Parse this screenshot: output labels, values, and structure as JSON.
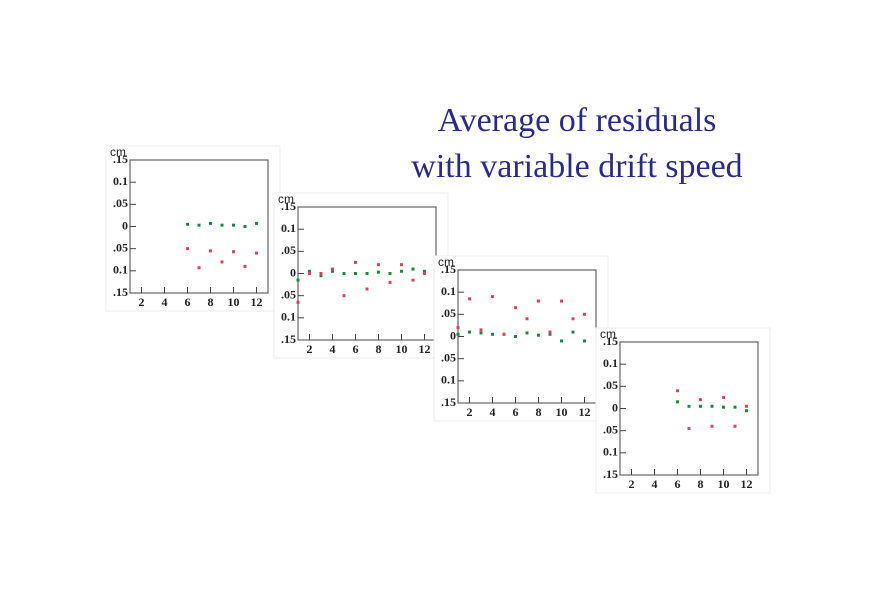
{
  "title": [
    "Average of residuals",
    "with variable drift speed"
  ],
  "chart_data": [
    {
      "type": "scatter",
      "y_label": "cm",
      "xlim": [
        1,
        13
      ],
      "ylim": [
        -0.15,
        0.15
      ],
      "xticks": [
        2,
        4,
        6,
        8,
        10,
        12
      ],
      "yticks": [
        {
          "value": -0.15,
          "label": ".15"
        },
        {
          "value": -0.1,
          "label": "0.1"
        },
        {
          "value": -0.05,
          "label": ".05"
        },
        0,
        {
          "value": 0.05,
          "label": ".05"
        },
        0.1,
        {
          "value": 0.15,
          "label": ".15"
        }
      ],
      "series": [
        {
          "color": "#1a8a3a",
          "x": [
            6,
            7,
            8,
            9,
            10,
            11,
            12
          ],
          "values": [
            0.005,
            0.003,
            0.007,
            0.003,
            0.003,
            0.0,
            0.007
          ]
        },
        {
          "color": "#e04060",
          "x": [
            6,
            7,
            8,
            9,
            10,
            11,
            12
          ],
          "values": [
            -0.05,
            -0.093,
            -0.055,
            -0.08,
            -0.057,
            -0.09,
            -0.06
          ]
        }
      ]
    },
    {
      "type": "scatter",
      "y_label": "cm",
      "xlim": [
        1,
        13
      ],
      "ylim": [
        -0.15,
        0.15
      ],
      "xticks": [
        2,
        4,
        6,
        8,
        10,
        12
      ],
      "yticks": [
        {
          "value": -0.15,
          "label": ".15"
        },
        {
          "value": -0.1,
          "label": "0.1"
        },
        {
          "value": -0.05,
          "label": ".05"
        },
        0,
        {
          "value": 0.05,
          "label": ".05"
        },
        0.1,
        {
          "value": 0.15,
          "label": ".15"
        }
      ],
      "series": [
        {
          "color": "#1a8a3a",
          "x": [
            1,
            2,
            3,
            4,
            5,
            6,
            7,
            8,
            9,
            10,
            11,
            12
          ],
          "values": [
            -0.015,
            0.005,
            -0.005,
            0.005,
            0.0,
            0.0,
            0.0,
            0.003,
            0.0,
            0.005,
            0.01,
            0.005
          ]
        },
        {
          "color": "#e04060",
          "x": [
            1,
            2,
            3,
            4,
            5,
            6,
            7,
            8,
            9,
            10,
            11,
            12
          ],
          "values": [
            -0.065,
            0.0,
            0.0,
            0.01,
            -0.05,
            0.025,
            -0.035,
            0.02,
            -0.02,
            0.02,
            -0.015,
            0.0
          ]
        }
      ]
    },
    {
      "type": "scatter",
      "y_label": "cm",
      "xlim": [
        1,
        13
      ],
      "ylim": [
        -0.15,
        0.15
      ],
      "xticks": [
        2,
        4,
        6,
        8,
        10,
        12
      ],
      "yticks": [
        {
          "value": -0.15,
          "label": ".15"
        },
        {
          "value": -0.1,
          "label": "0.1"
        },
        {
          "value": -0.05,
          "label": ".05"
        },
        0,
        {
          "value": 0.05,
          "label": ".05"
        },
        0.1,
        {
          "value": 0.15,
          "label": ".15"
        }
      ],
      "series": [
        {
          "color": "#1a8a3a",
          "x": [
            1,
            2,
            3,
            4,
            5,
            6,
            7,
            8,
            9,
            10,
            11,
            12
          ],
          "values": [
            0.005,
            0.01,
            0.008,
            0.005,
            0.005,
            0.0,
            0.008,
            0.003,
            0.005,
            -0.01,
            0.01,
            -0.01
          ]
        },
        {
          "color": "#e04060",
          "x": [
            1,
            2,
            3,
            4,
            5,
            6,
            7,
            8,
            9,
            10,
            11,
            12
          ],
          "values": [
            0.02,
            0.085,
            0.015,
            0.09,
            0.005,
            0.065,
            0.04,
            0.08,
            0.01,
            0.08,
            0.04,
            0.05
          ]
        }
      ]
    },
    {
      "type": "scatter",
      "y_label": "cm",
      "xlim": [
        1,
        13
      ],
      "ylim": [
        -0.15,
        0.15
      ],
      "xticks": [
        2,
        4,
        6,
        8,
        10,
        12
      ],
      "yticks": [
        {
          "value": -0.15,
          "label": ".15"
        },
        {
          "value": -0.1,
          "label": "0.1"
        },
        {
          "value": -0.05,
          "label": ".05"
        },
        0,
        {
          "value": 0.05,
          "label": ".05"
        },
        0.1,
        {
          "value": 0.15,
          "label": ".15"
        }
      ],
      "series": [
        {
          "color": "#1a8a3a",
          "x": [
            6,
            7,
            8,
            9,
            10,
            11,
            12
          ],
          "values": [
            0.015,
            0.005,
            0.005,
            0.005,
            0.003,
            0.003,
            -0.005
          ]
        },
        {
          "color": "#e04060",
          "x": [
            6,
            7,
            8,
            9,
            10,
            11,
            12
          ],
          "values": [
            0.04,
            -0.045,
            0.02,
            -0.04,
            0.025,
            -0.04,
            0.005
          ]
        }
      ]
    }
  ]
}
